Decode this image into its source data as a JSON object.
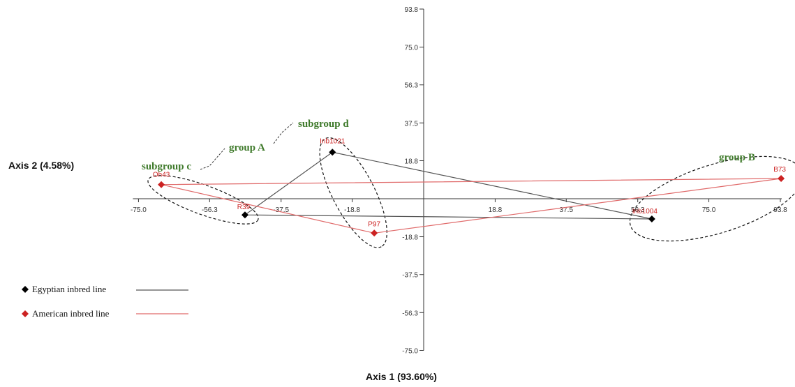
{
  "chart_data": {
    "type": "scatter",
    "xlabel": "Axis 1 (93.60%)",
    "ylabel": "Axis 2 (4.58%)",
    "xlim": [
      -75.0,
      93.8
    ],
    "ylim": [
      -75.0,
      93.8
    ],
    "x_ticks": [
      "-75.0",
      "-56.3",
      "-37.5",
      "-18.8",
      "18.8",
      "37.5",
      "56.3",
      "75.0",
      "93.8"
    ],
    "y_ticks": [
      "93.8",
      "75.0",
      "56.3",
      "37.5",
      "18.8",
      "-18.8",
      "-37.5",
      "-56.3",
      "-75.0"
    ],
    "series": [
      {
        "name": "Egyptian inbred line",
        "color": "#000000",
        "line_color": "#555555",
        "points": [
          {
            "label": "R39",
            "x": -47,
            "y": -8
          },
          {
            "label": "Inb1021",
            "x": -24,
            "y": 23
          },
          {
            "label": "Inb1004",
            "x": 60,
            "y": -10
          }
        ],
        "path": [
          "R39",
          "Inb1021",
          "Inb1004",
          "R39"
        ]
      },
      {
        "name": "American inbred line",
        "color": "#cc2222",
        "line_color": "#e06a6a",
        "points": [
          {
            "label": "Oh43",
            "x": -69,
            "y": 7
          },
          {
            "label": "P97",
            "x": -13,
            "y": -17
          },
          {
            "label": "B73",
            "x": 94,
            "y": 10
          }
        ],
        "path": [
          "Oh43",
          "P97",
          "B73",
          "Oh43"
        ]
      }
    ],
    "annotations": [
      "subgroup c",
      "group A",
      "subgroup d",
      "group B"
    ]
  }
}
